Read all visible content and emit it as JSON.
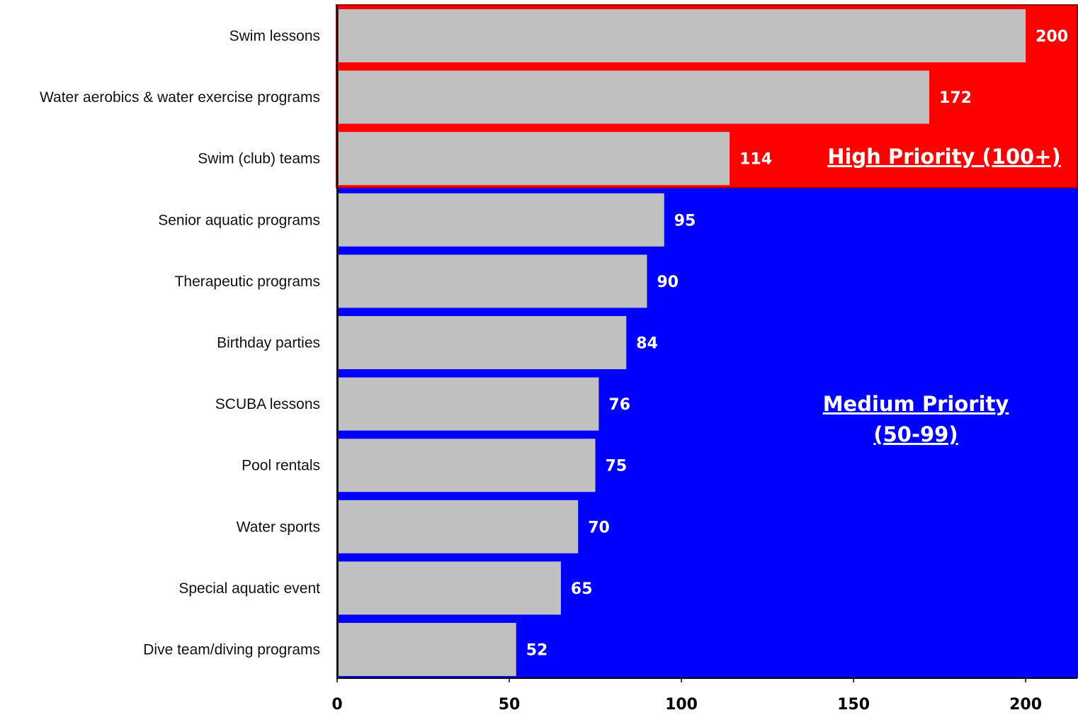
{
  "chart_data": {
    "type": "bar",
    "orientation": "horizontal",
    "categories": [
      "Swim lessons",
      "Water aerobics & water exercise programs",
      "Swim (club) teams",
      "Senior aquatic programs",
      "Therapeutic programs",
      "Birthday parties",
      "SCUBA lessons",
      "Pool rentals",
      "Water sports",
      "Special aquatic event",
      "Dive team/diving programs"
    ],
    "values": [
      200,
      172,
      114,
      95,
      90,
      84,
      76,
      75,
      70,
      65,
      52
    ],
    "xlim": [
      0,
      215
    ],
    "xticks": [
      0,
      50,
      100,
      150,
      200
    ],
    "bar_color": "#c0c0c0",
    "zones": [
      {
        "label": "High Priority (100+)",
        "color": "#ff0000",
        "rows": [
          0,
          2
        ]
      },
      {
        "label_lines": [
          "Medium Priority",
          "(50-99)"
        ],
        "color": "#0000ff",
        "rows": [
          3,
          10
        ]
      }
    ],
    "title": "",
    "xlabel": "",
    "ylabel": "",
    "grid": false,
    "legend": "none"
  }
}
